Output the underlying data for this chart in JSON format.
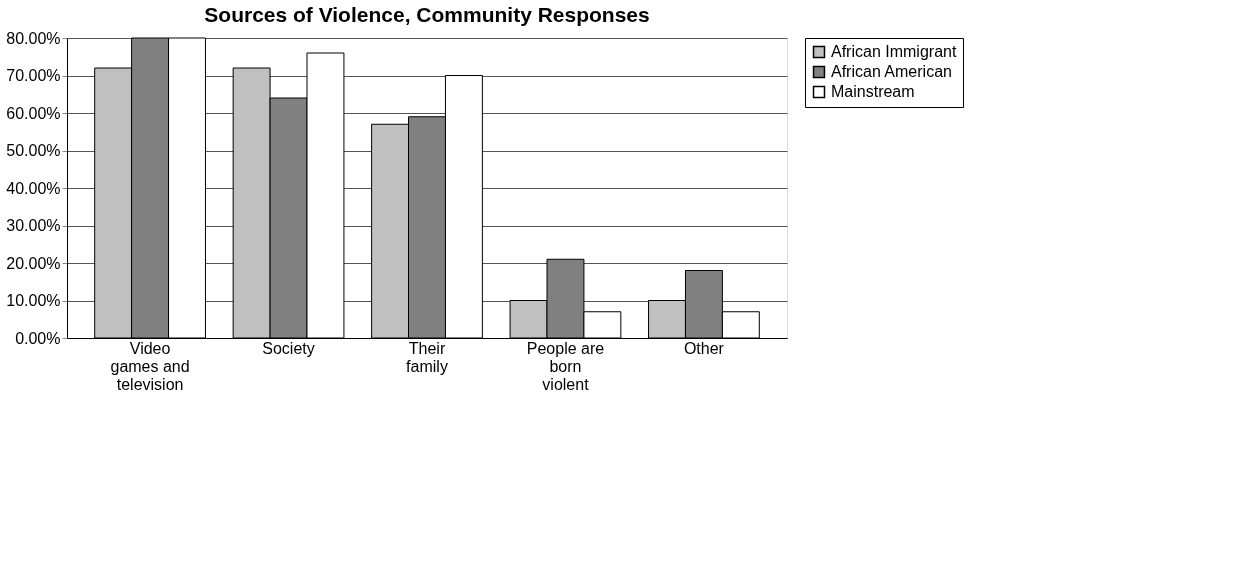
{
  "chart_data": {
    "type": "bar",
    "title": "Sources of Violence, Community Responses",
    "categories": [
      "Video games and television",
      "Society",
      "Their family",
      "People are born violent",
      "Other"
    ],
    "series": [
      {
        "name": "African Immigrant",
        "color": "#c0c0c0",
        "values": [
          72,
          72,
          57,
          10,
          10
        ]
      },
      {
        "name": "African American",
        "color": "#808080",
        "values": [
          80,
          64,
          59,
          21,
          18
        ]
      },
      {
        "name": "Mainstream",
        "color": "#ffffff",
        "values": [
          80,
          76,
          70,
          7,
          7
        ]
      }
    ],
    "ylim": [
      0,
      80
    ],
    "yticks": [
      {
        "value": 0,
        "label": "0.00%"
      },
      {
        "value": 10,
        "label": "10.00%"
      },
      {
        "value": 20,
        "label": "20.00%"
      },
      {
        "value": 30,
        "label": "30.00%"
      },
      {
        "value": 40,
        "label": "40.00%"
      },
      {
        "value": 50,
        "label": "50.00%"
      },
      {
        "value": 60,
        "label": "60.00%"
      },
      {
        "value": 70,
        "label": "70.00%"
      },
      {
        "value": 80,
        "label": "80.00%"
      }
    ],
    "grid": "y",
    "legend": "right"
  }
}
